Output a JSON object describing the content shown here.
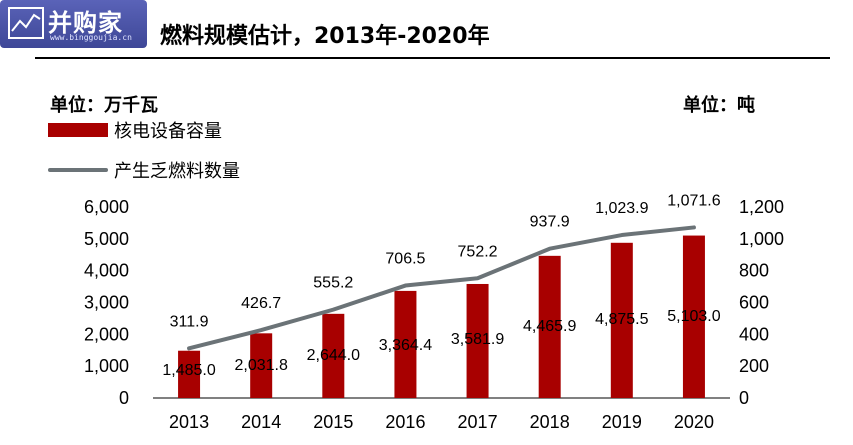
{
  "logo": {
    "text": "并购家",
    "sub": "www.binggoujia.cn"
  },
  "title": "燃料规模估计，2013年-2020年",
  "unit_left": "单位：万千瓦",
  "unit_right": "单位：吨",
  "colors": {
    "bar": "#a80000",
    "line": "#6b7377"
  },
  "chart_data": {
    "type": "bar",
    "categories": [
      "2013",
      "2014",
      "2015",
      "2016",
      "2017",
      "2018",
      "2019",
      "2020"
    ],
    "series": [
      {
        "name": "核电设备容量",
        "type": "bar",
        "axis": "left",
        "values": [
          1485.0,
          2031.8,
          2644.0,
          3364.4,
          3581.9,
          4465.9,
          4875.5,
          5103.0
        ],
        "labels": [
          "1,485.0",
          "2,031.8",
          "2,644.0",
          "3,364.4",
          "3,581.9",
          "4,465.9",
          "4,875.5",
          "5,103.0"
        ]
      },
      {
        "name": "产生乏燃料数量",
        "type": "line",
        "axis": "right",
        "values": [
          311.9,
          426.7,
          555.2,
          706.5,
          752.2,
          937.9,
          1023.9,
          1071.6
        ],
        "labels": [
          "311.9",
          "426.7",
          "555.2",
          "706.5",
          "752.2",
          "937.9",
          "1,023.9",
          "1,071.6"
        ]
      }
    ],
    "y_left": {
      "range": [
        0,
        6000
      ],
      "ticks": [
        "0",
        "1,000",
        "2,000",
        "3,000",
        "4,000",
        "5,000",
        "6,000"
      ]
    },
    "y_right": {
      "range": [
        0,
        1200
      ],
      "ticks": [
        "0",
        "200",
        "400",
        "600",
        "800",
        "1,000",
        "1,200"
      ]
    },
    "legend": "top-left",
    "grid": false
  }
}
